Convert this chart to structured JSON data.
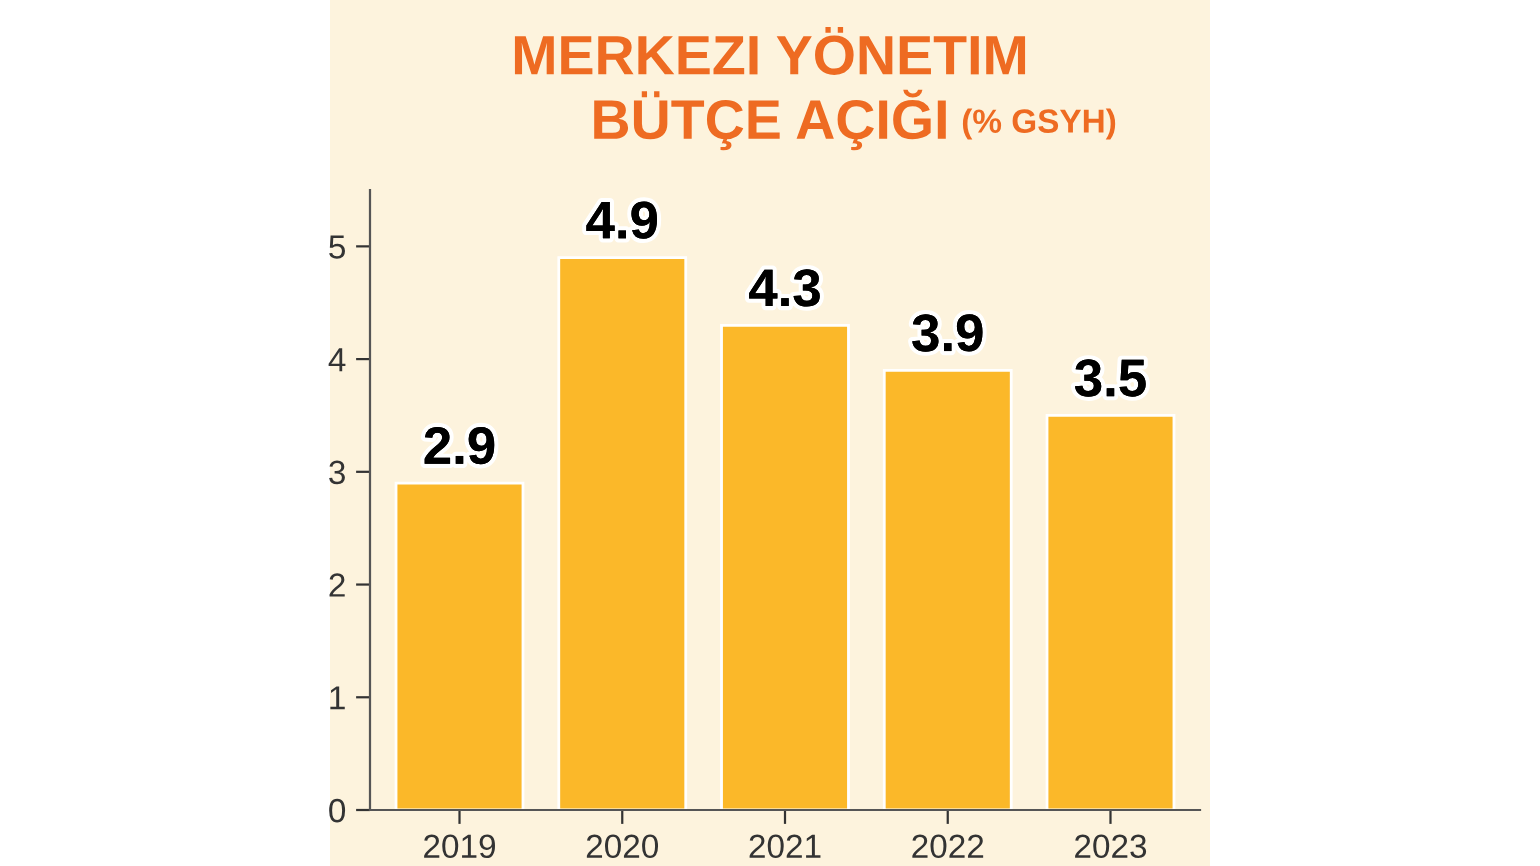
{
  "chart_data": {
    "type": "bar",
    "title": "MERKEZI YÖNETIM\nBÜTÇE AÇIĞI",
    "subtitle": "(% GSYH)",
    "categories": [
      "2019",
      "2020",
      "2021",
      "2022",
      "2023"
    ],
    "values": [
      2.9,
      4.9,
      4.3,
      3.9,
      3.5
    ],
    "color": "#fbb829",
    "ylim": [
      0,
      5.5
    ],
    "yticks": [
      0,
      1,
      2,
      3,
      4,
      5
    ],
    "grid": false,
    "data_labels": true
  }
}
